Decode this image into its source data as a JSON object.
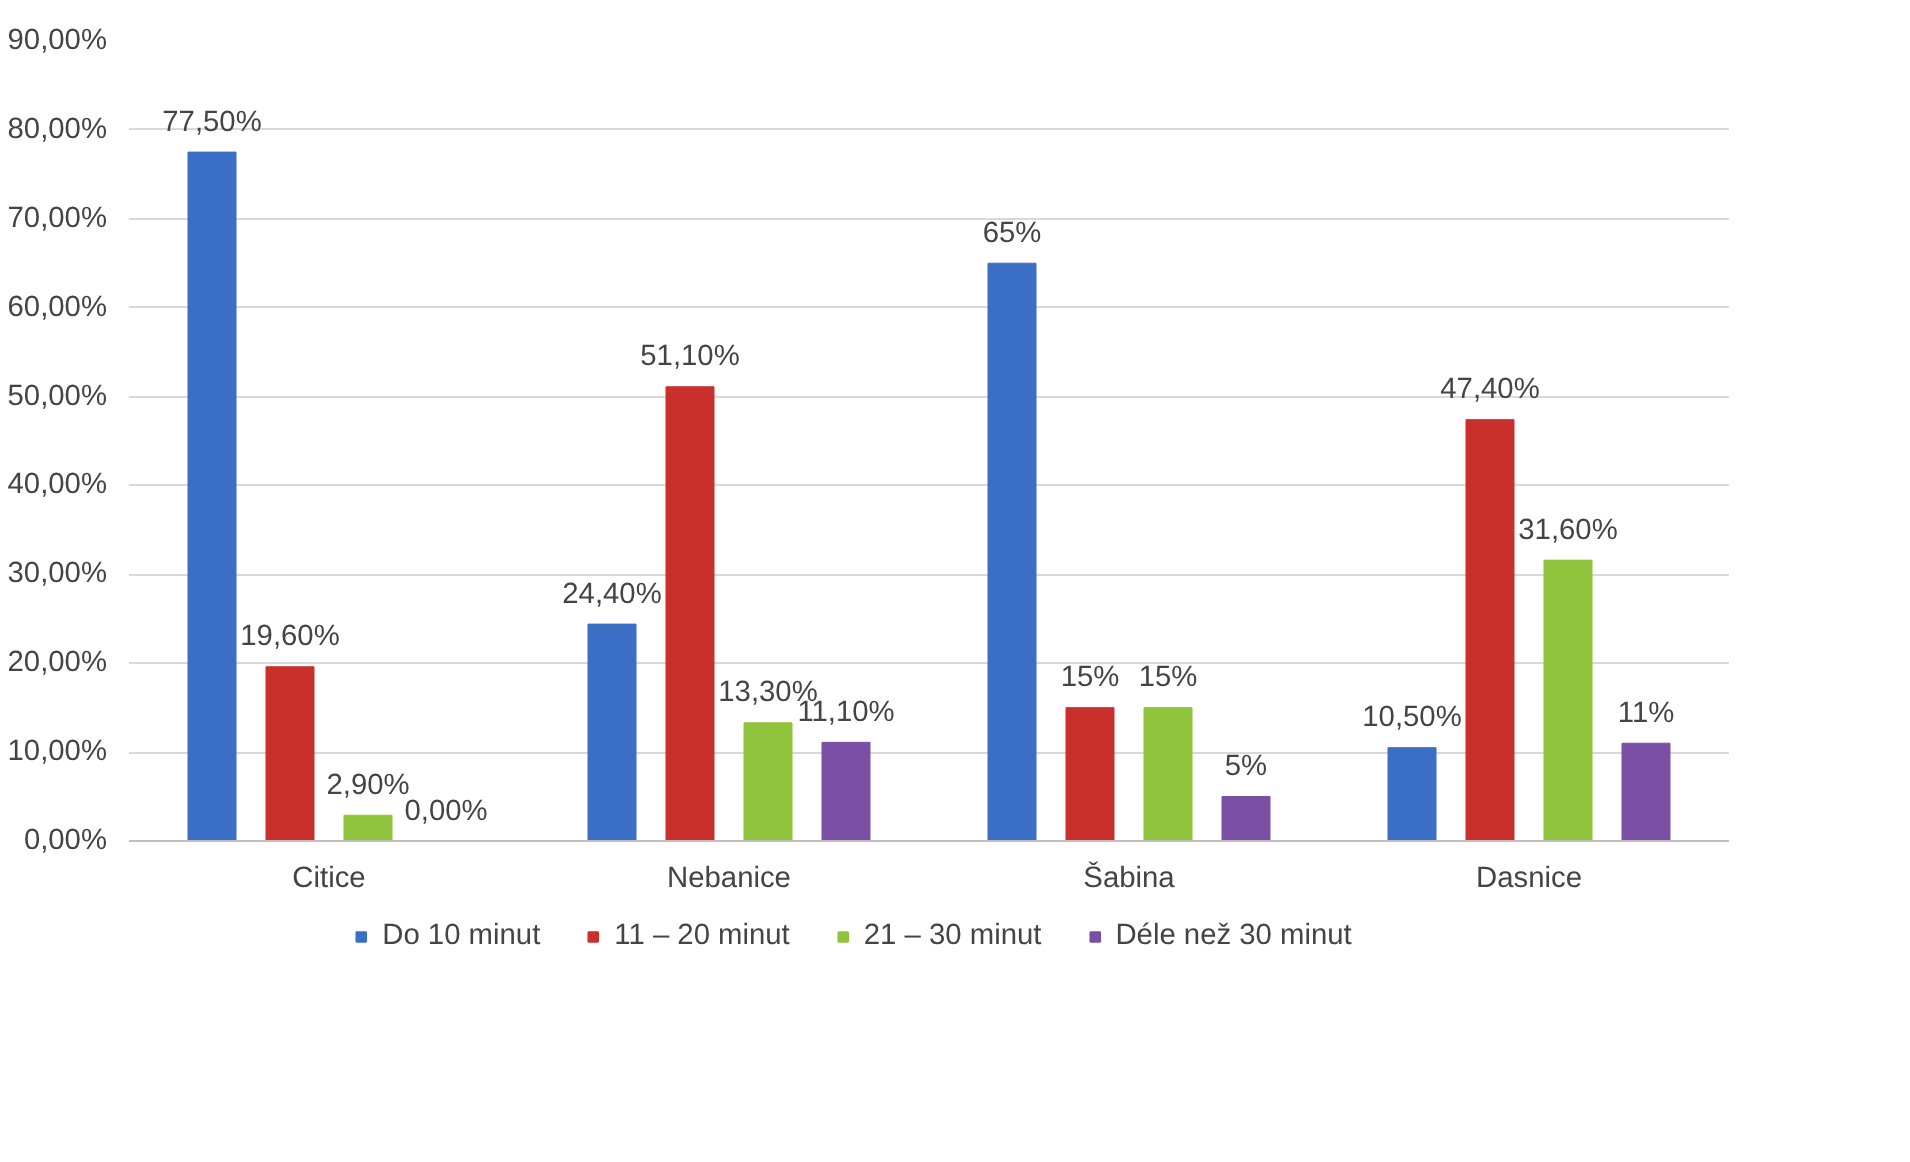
{
  "chart_data": {
    "type": "bar",
    "categories": [
      "Citice",
      "Nebanice",
      "Šabina",
      "Dasnice"
    ],
    "series": [
      {
        "name": "Do 10 minut",
        "color": "#3b6fc6",
        "values": [
          77.5,
          24.4,
          65,
          10.5
        ],
        "value_labels": [
          "77,50%",
          "24,40%",
          "65%",
          "10,50%"
        ]
      },
      {
        "name": "11 – 20 minut",
        "color": "#c9302c",
        "values": [
          19.6,
          51.1,
          15,
          47.4
        ],
        "value_labels": [
          "19,60%",
          "51,10%",
          "15%",
          "47,40%"
        ]
      },
      {
        "name": "21 – 30 minut",
        "color": "#8fc43c",
        "values": [
          2.9,
          13.3,
          15,
          31.6
        ],
        "value_labels": [
          "2,90%",
          "13,30%",
          "15%",
          "31,60%"
        ]
      },
      {
        "name": "Déle než 30 minut",
        "color": "#7a4fa3",
        "values": [
          0.0,
          11.1,
          5,
          11
        ],
        "value_labels": [
          "0,00%",
          "11,10%",
          "5%",
          "11%"
        ]
      }
    ],
    "ylim": [
      0,
      90
    ],
    "yticks": [
      {
        "value": 0,
        "label": "0,00%"
      },
      {
        "value": 10,
        "label": "10,00%"
      },
      {
        "value": 20,
        "label": "20,00%"
      },
      {
        "value": 30,
        "label": "30,00%"
      },
      {
        "value": 40,
        "label": "40,00%"
      },
      {
        "value": 50,
        "label": "50,00%"
      },
      {
        "value": 60,
        "label": "60,00%"
      },
      {
        "value": 70,
        "label": "70,00%"
      },
      {
        "value": 80,
        "label": "80,00%"
      },
      {
        "value": 90,
        "label": "90,00%"
      }
    ],
    "grid": "y",
    "legend": "bottom"
  }
}
